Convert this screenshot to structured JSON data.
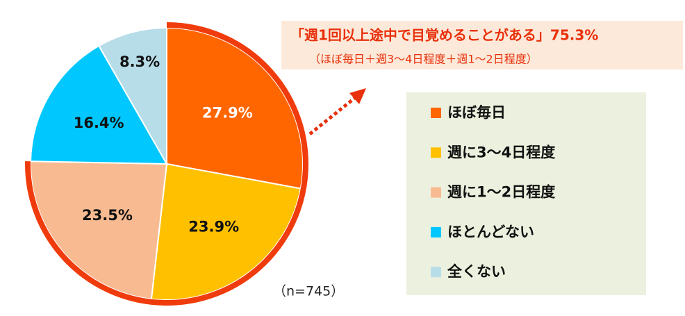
{
  "chart_data": {
    "type": "pie",
    "categories": [
      "ほぼ毎日",
      "週に3～4日程度",
      "週に1～2日程度",
      "ほとんどない",
      "全くない"
    ],
    "values": [
      27.9,
      23.9,
      23.5,
      16.4,
      8.3
    ],
    "value_labels": [
      "27.9%",
      "23.9%",
      "23.5%",
      "16.4%",
      "8.3%"
    ],
    "colors": [
      "#ff6600",
      "#ffc000",
      "#f8bb91",
      "#00c8ff",
      "#b7dde8"
    ],
    "annotation": "「週1回以上途中で目覚めることがある」75.3%",
    "annotation_note": "（ほぼ毎日＋週3～4日程度＋週1～2日程度）",
    "note": "（n=745）",
    "legend": "right"
  }
}
